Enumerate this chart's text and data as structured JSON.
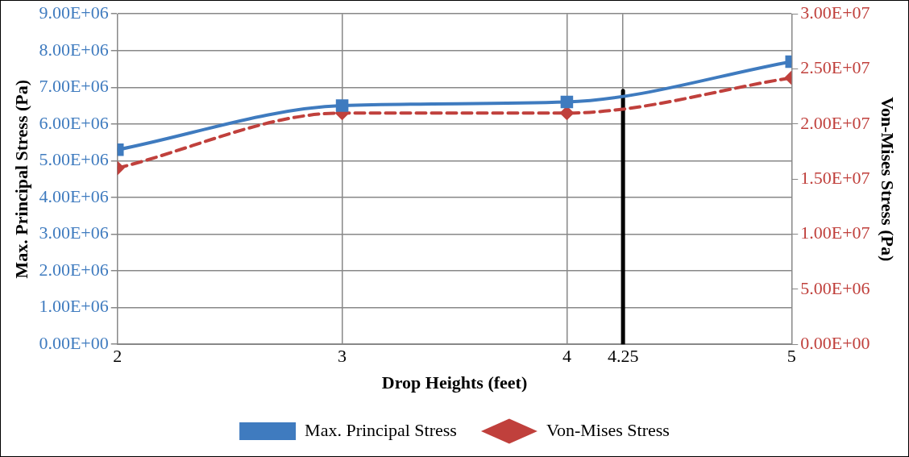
{
  "chart_data": {
    "type": "line",
    "xlabel": "Drop Heights (feet)",
    "ylabel": "Max. Principal Stress (Pa)",
    "y2label": "Von-Mises Stress (Pa)",
    "x": [
      2,
      3,
      4,
      5
    ],
    "xlim": [
      2,
      5
    ],
    "xticks": [
      2,
      3,
      4,
      4.25,
      5
    ],
    "ylim": [
      0,
      9000000
    ],
    "yticks": [
      {
        "value": 0,
        "label": "0.00E+00"
      },
      {
        "value": 1000000,
        "label": "1.00E+06"
      },
      {
        "value": 2000000,
        "label": "2.00E+06"
      },
      {
        "value": 3000000,
        "label": "3.00E+06"
      },
      {
        "value": 4000000,
        "label": "4.00E+06"
      },
      {
        "value": 5000000,
        "label": "5.00E+06"
      },
      {
        "value": 6000000,
        "label": "6.00E+06"
      },
      {
        "value": 7000000,
        "label": "7.00E+06"
      },
      {
        "value": 8000000,
        "label": "8.00E+06"
      },
      {
        "value": 9000000,
        "label": "9.00E+06"
      }
    ],
    "y2lim": [
      0,
      30000000
    ],
    "y2ticks": [
      {
        "value": 0,
        "label": "0.00E+00"
      },
      {
        "value": 5000000,
        "label": "5.00E+06"
      },
      {
        "value": 10000000,
        "label": "1.00E+07"
      },
      {
        "value": 15000000,
        "label": "1.50E+07"
      },
      {
        "value": 20000000,
        "label": "2.00E+07"
      },
      {
        "value": 25000000,
        "label": "2.50E+07"
      },
      {
        "value": 30000000,
        "label": "3.00E+07"
      }
    ],
    "series": [
      {
        "name": "Max. Principal Stress",
        "color": "#3f7bbf",
        "values": [
          5300000,
          6500000,
          6600000,
          7700000
        ],
        "marker": "square",
        "line_style": "solid"
      },
      {
        "name": "Von-Mises Stress",
        "color": "#c0403c",
        "values": [
          16000000,
          21000000,
          21000000,
          24200000
        ],
        "axis": "y2",
        "marker": "diamond",
        "line_style": "dashed"
      },
      {
        "color": "#000000",
        "x": [
          4.25,
          4.25
        ],
        "values": [
          0,
          6900000
        ],
        "marker": "none",
        "line_style": "solid"
      }
    ],
    "grid": true,
    "legend": "bottom"
  }
}
